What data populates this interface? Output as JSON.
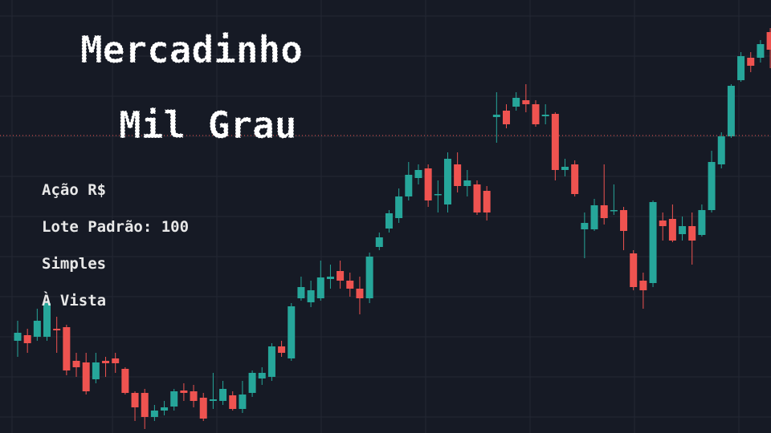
{
  "chart_data": {
    "type": "candlestick",
    "title_lines": [
      "Mercadinho",
      "Mil Grau"
    ],
    "annotations": [
      "Ação R$",
      "Lote Padrão: 100",
      "Simples",
      "À Vista"
    ],
    "open": [
      115,
      122,
      120,
      120,
      130,
      132,
      90,
      88,
      67,
      90,
      93,
      80,
      50,
      50,
      20,
      28,
      33,
      53,
      52,
      44,
      40,
      40,
      47,
      30,
      50,
      68,
      70,
      108,
      93,
      168,
      163,
      168,
      192,
      202,
      190,
      180,
      168,
      232,
      255,
      268,
      295,
      318,
      330,
      297,
      285,
      335,
      308,
      310,
      302,
      394,
      402,
      407,
      415,
      410,
      395,
      398,
      328,
      335,
      254,
      254,
      284,
      278,
      278,
      224,
      190,
      187,
      265,
      267,
      248,
      258,
      247,
      278,
      335,
      370,
      440,
      468,
      468,
      500
    ],
    "high": [
      140,
      130,
      155,
      165,
      145,
      135,
      100,
      100,
      100,
      95,
      100,
      82,
      52,
      55,
      35,
      40,
      55,
      62,
      60,
      50,
      75,
      65,
      52,
      65,
      78,
      82,
      112,
      115,
      162,
      195,
      190,
      215,
      210,
      215,
      200,
      195,
      225,
      250,
      278,
      305,
      338,
      335,
      335,
      315,
      350,
      350,
      328,
      315,
      308,
      425,
      410,
      425,
      435,
      415,
      410,
      400,
      342,
      340,
      275,
      292,
      335,
      310,
      282,
      228,
      200,
      290,
      275,
      285,
      270,
      275,
      285,
      352,
      375,
      435,
      475,
      475,
      490,
      505
    ],
    "low": [
      95,
      100,
      115,
      115,
      100,
      72,
      70,
      48,
      62,
      70,
      75,
      48,
      15,
      5,
      15,
      22,
      28,
      40,
      32,
      15,
      30,
      35,
      28,
      25,
      45,
      60,
      65,
      95,
      90,
      165,
      157,
      165,
      180,
      180,
      170,
      148,
      162,
      228,
      250,
      262,
      290,
      310,
      282,
      275,
      275,
      300,
      295,
      272,
      265,
      362,
      380,
      402,
      400,
      382,
      385,
      315,
      320,
      295,
      218,
      252,
      260,
      272,
      228,
      178,
      155,
      182,
      240,
      238,
      240,
      210,
      245,
      275,
      330,
      368,
      438,
      450,
      462,
      455
    ],
    "close": [
      125,
      112,
      140,
      162,
      128,
      78,
      82,
      52,
      88,
      87,
      87,
      50,
      32,
      20,
      28,
      32,
      52,
      50,
      40,
      18,
      42,
      55,
      30,
      48,
      75,
      75,
      108,
      100,
      158,
      182,
      178,
      194,
      195,
      190,
      180,
      168,
      220,
      244,
      274,
      295,
      322,
      328,
      290,
      298,
      342,
      308,
      315,
      275,
      275,
      397,
      385,
      418,
      410,
      385,
      397,
      328,
      332,
      298,
      262,
      284,
      268,
      278,
      252,
      182,
      178,
      288,
      258,
      240,
      258,
      240,
      278,
      338,
      370,
      433,
      470,
      458,
      485,
      478
    ],
    "last_price": 371,
    "ylim": [
      0,
      540
    ],
    "up_color": "#26a69a",
    "down_color": "#ef5350",
    "last_price_color": "#ef5350"
  }
}
